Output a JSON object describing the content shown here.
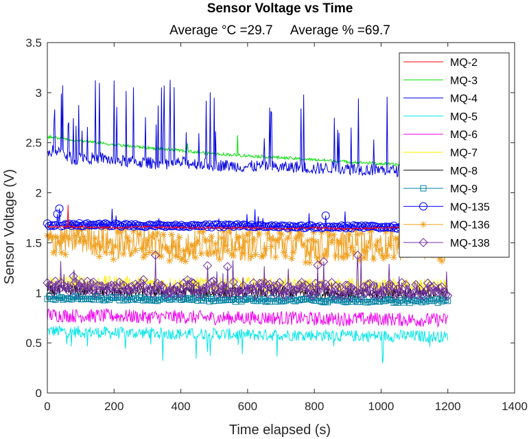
{
  "chart_data": {
    "type": "line",
    "title": "Sensor Voltage vs Time",
    "subtitle": "Average °C =29.7     Average % =69.7",
    "xlabel": "Time elapsed (s)",
    "ylabel": "Sensor Voltage (V)",
    "xlim": [
      0,
      1400
    ],
    "ylim": [
      0,
      3.5
    ],
    "xticks": [
      0,
      200,
      400,
      600,
      800,
      1000,
      1200,
      1400
    ],
    "yticks": [
      0,
      0.5,
      1,
      1.5,
      2,
      2.5,
      3,
      3.5
    ],
    "xtick_labels": [
      "0",
      "200",
      "400",
      "600",
      "800",
      "1000",
      "1200",
      "1400"
    ],
    "ytick_labels": [
      "0",
      "0.5",
      "1",
      "1.5",
      "2",
      "2.5",
      "3",
      "3.5"
    ],
    "grid": false,
    "legend_position": "top-right",
    "series": [
      {
        "name": "MQ-2",
        "color": "#ff0000",
        "marker": "none",
        "x": [
          0,
          100,
          200,
          300,
          400,
          500,
          600,
          700,
          800,
          900,
          1000,
          1100,
          1200
        ],
        "y": [
          1.66,
          1.66,
          1.65,
          1.66,
          1.65,
          1.65,
          1.65,
          1.64,
          1.65,
          1.64,
          1.65,
          1.65,
          1.65
        ]
      },
      {
        "name": "MQ-3",
        "color": "#00dd00",
        "marker": "none",
        "x": [
          0,
          100,
          200,
          300,
          400,
          500,
          600,
          700,
          800,
          900,
          1000,
          1100,
          1200
        ],
        "y": [
          2.56,
          2.52,
          2.48,
          2.45,
          2.42,
          2.39,
          2.37,
          2.35,
          2.33,
          2.31,
          2.29,
          2.27,
          2.26
        ]
      },
      {
        "name": "MQ-4",
        "color": "#0000dd",
        "marker": "none",
        "x": [
          0,
          20,
          50,
          80,
          110,
          140,
          160,
          200,
          250,
          300,
          350,
          400,
          450,
          500,
          550,
          600,
          650,
          700,
          750,
          800,
          850,
          900,
          950,
          1000,
          1050,
          1100,
          1150,
          1200
        ],
        "y": [
          2.35,
          2.45,
          2.38,
          2.33,
          2.36,
          2.34,
          2.35,
          2.32,
          2.31,
          2.3,
          2.29,
          2.3,
          2.29,
          2.28,
          2.27,
          2.26,
          2.27,
          2.25,
          2.26,
          2.24,
          2.25,
          2.24,
          2.23,
          2.23,
          2.22,
          2.21,
          2.22,
          2.2
        ]
      },
      {
        "name": "MQ-5",
        "color": "#00e5e5",
        "marker": "none",
        "x": [
          0,
          100,
          200,
          300,
          400,
          500,
          600,
          700,
          800,
          900,
          1000,
          1100,
          1200
        ],
        "y": [
          0.62,
          0.61,
          0.6,
          0.6,
          0.59,
          0.59,
          0.58,
          0.58,
          0.58,
          0.57,
          0.57,
          0.57,
          0.56
        ]
      },
      {
        "name": "MQ-6",
        "color": "#ee00ee",
        "marker": "none",
        "x": [
          0,
          100,
          200,
          300,
          400,
          500,
          600,
          700,
          800,
          900,
          1000,
          1100,
          1200
        ],
        "y": [
          0.78,
          0.77,
          0.77,
          0.76,
          0.76,
          0.75,
          0.75,
          0.75,
          0.74,
          0.74,
          0.74,
          0.73,
          0.73
        ]
      },
      {
        "name": "MQ-7",
        "color": "#ffee00",
        "marker": "none",
        "x": [
          0,
          100,
          200,
          300,
          400,
          500,
          600,
          700,
          800,
          900,
          1000,
          1100,
          1200
        ],
        "y": [
          1.1,
          1.1,
          1.09,
          1.09,
          1.08,
          1.08,
          1.08,
          1.07,
          1.07,
          1.07,
          1.06,
          1.06,
          1.06
        ]
      },
      {
        "name": "MQ-8",
        "color": "#000000",
        "marker": "none",
        "x": [
          0,
          100,
          200,
          300,
          400,
          500,
          600,
          700,
          800,
          900,
          1000,
          1100,
          1200
        ],
        "y": [
          1.02,
          1.02,
          1.01,
          1.01,
          1.01,
          1.0,
          1.0,
          1.0,
          1.0,
          0.99,
          0.99,
          0.99,
          0.99
        ]
      },
      {
        "name": "MQ-9",
        "color": "#0080a0",
        "marker": "square",
        "x": [
          0,
          100,
          200,
          300,
          400,
          500,
          600,
          700,
          800,
          900,
          1000,
          1100,
          1200
        ],
        "y": [
          0.95,
          0.95,
          0.94,
          0.94,
          0.94,
          0.93,
          0.93,
          0.93,
          0.93,
          0.92,
          0.92,
          0.92,
          0.92
        ]
      },
      {
        "name": "MQ-135",
        "color": "#0000ff",
        "marker": "circle",
        "x": [
          0,
          100,
          200,
          300,
          400,
          500,
          600,
          700,
          800,
          900,
          1000,
          1100,
          1200
        ],
        "y": [
          1.68,
          1.68,
          1.68,
          1.67,
          1.67,
          1.67,
          1.67,
          1.66,
          1.66,
          1.66,
          1.66,
          1.65,
          1.65
        ]
      },
      {
        "name": "MQ-136",
        "color": "#f0a020",
        "marker": "asterisk",
        "x": [
          0,
          100,
          200,
          300,
          400,
          500,
          600,
          700,
          800,
          900,
          1000,
          1100,
          1200
        ],
        "y": [
          1.5,
          1.55,
          1.48,
          1.52,
          1.45,
          1.5,
          1.47,
          1.5,
          1.45,
          1.48,
          1.46,
          1.5,
          1.47
        ]
      },
      {
        "name": "MQ-138",
        "color": "#7030a0",
        "marker": "diamond",
        "x": [
          0,
          100,
          200,
          300,
          400,
          500,
          600,
          700,
          800,
          900,
          1000,
          1100,
          1200
        ],
        "y": [
          1.05,
          1.06,
          1.05,
          1.05,
          1.04,
          1.05,
          1.04,
          1.04,
          1.04,
          1.03,
          1.04,
          1.03,
          1.03
        ]
      }
    ]
  }
}
